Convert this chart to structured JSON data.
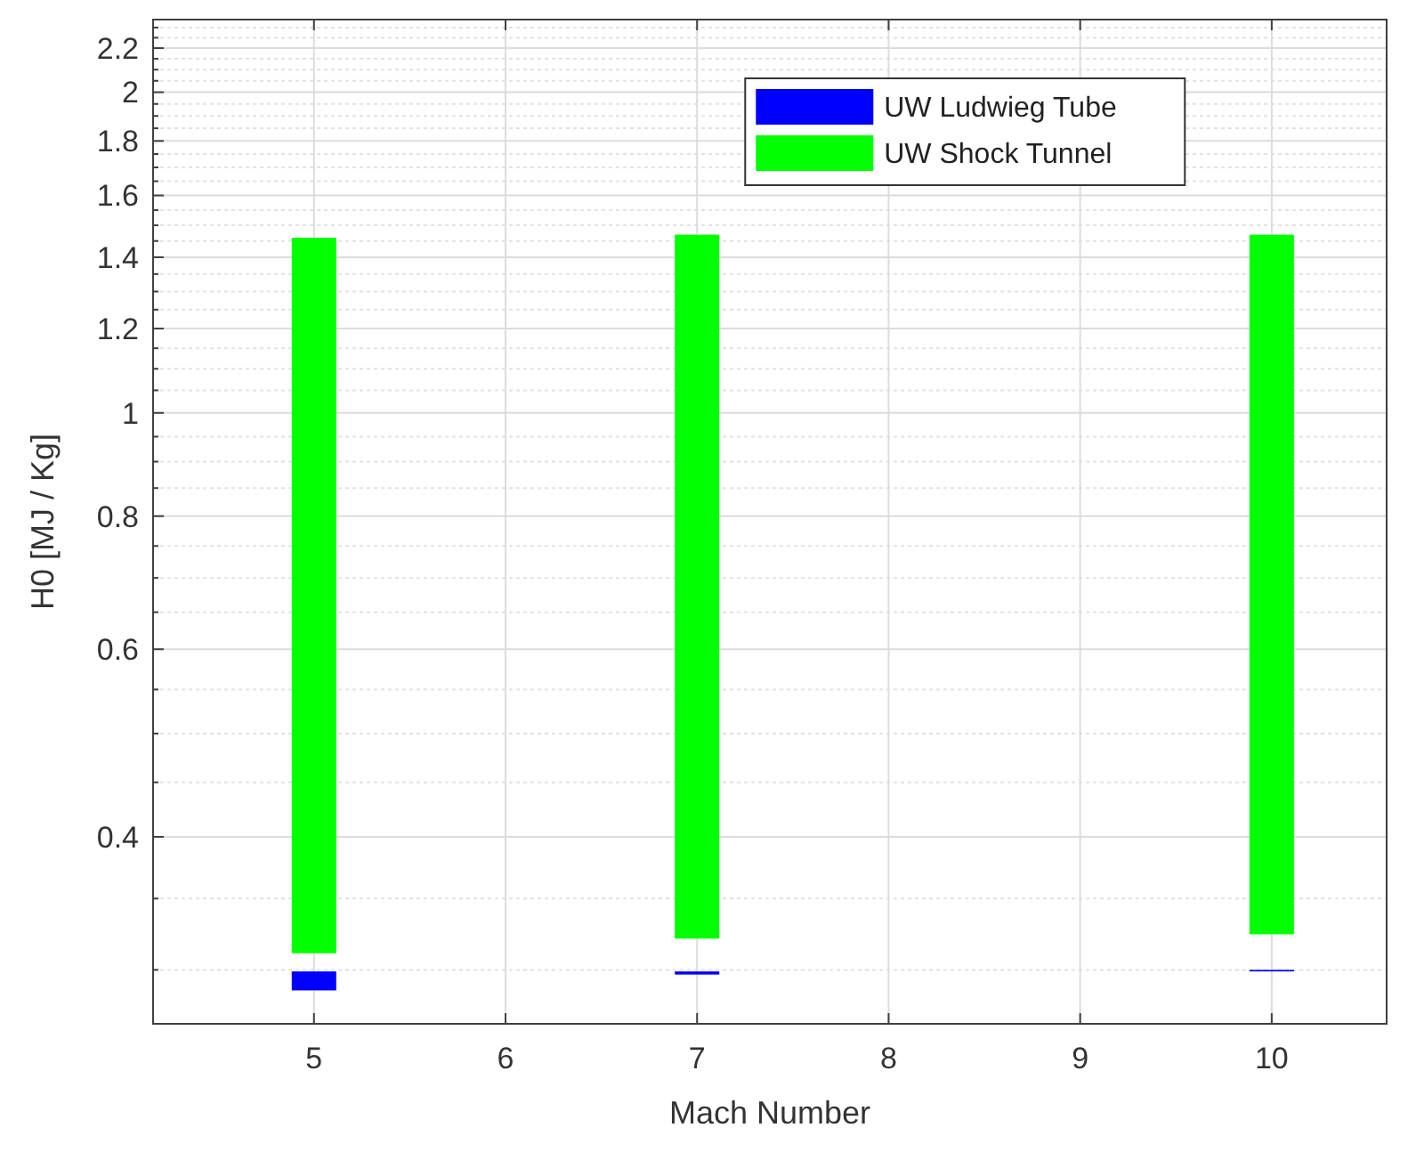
{
  "chart_data": {
    "type": "bar",
    "xlabel": "Mach Number",
    "ylabel": "H0 [MJ / Kg]",
    "x": [
      5,
      7,
      10
    ],
    "series": [
      {
        "name": "UW Ludwieg Tube",
        "color": "#0000ff",
        "base": [
          0.287,
          0.297,
          0.299
        ],
        "values": [
          0.012,
          0.002,
          0.001
        ]
      },
      {
        "name": "UW Shock Tunnel",
        "color": "#00ff00",
        "base": [
          0.311,
          0.321,
          0.324
        ],
        "values": [
          1.149,
          1.149,
          1.146
        ]
      }
    ],
    "xlim": [
      4.16,
      10.6
    ],
    "xticks": [
      5,
      6,
      7,
      8,
      9,
      10
    ],
    "log": "y",
    "ylim": [
      0.267,
      2.34
    ],
    "yticks": [
      {
        "value": 0.3,
        "label": null
      },
      {
        "value": 0.35,
        "label": null
      },
      0.4,
      {
        "value": 0.45,
        "label": null
      },
      {
        "value": 0.5,
        "label": null
      },
      {
        "value": 0.55,
        "label": null
      },
      0.6,
      {
        "value": 0.65,
        "label": null
      },
      {
        "value": 0.7,
        "label": null
      },
      {
        "value": 0.75,
        "label": null
      },
      0.8,
      {
        "value": 0.85,
        "label": null
      },
      {
        "value": 0.9,
        "label": null
      },
      {
        "value": 0.95,
        "label": null
      },
      1,
      {
        "value": 1.05,
        "label": null
      },
      {
        "value": 1.1,
        "label": null
      },
      {
        "value": 1.15,
        "label": null
      },
      1.2,
      {
        "value": 1.25,
        "label": null
      },
      {
        "value": 1.3,
        "label": null
      },
      {
        "value": 1.35,
        "label": null
      },
      1.4,
      {
        "value": 1.45,
        "label": null
      },
      {
        "value": 1.5,
        "label": null
      },
      {
        "value": 1.55,
        "label": null
      },
      1.6,
      {
        "value": 1.65,
        "label": null
      },
      {
        "value": 1.7,
        "label": null
      },
      {
        "value": 1.75,
        "label": null
      },
      1.8,
      {
        "value": 1.85,
        "label": null
      },
      {
        "value": 1.9,
        "label": null
      },
      {
        "value": 1.95,
        "label": null
      },
      2,
      {
        "value": 2.05,
        "label": null
      },
      {
        "value": 2.1,
        "label": null
      },
      {
        "value": 2.15,
        "label": null
      },
      2.2,
      {
        "value": 2.25,
        "label": null
      },
      {
        "value": 2.3,
        "label": null
      }
    ],
    "grid": true,
    "legend": "top right"
  }
}
